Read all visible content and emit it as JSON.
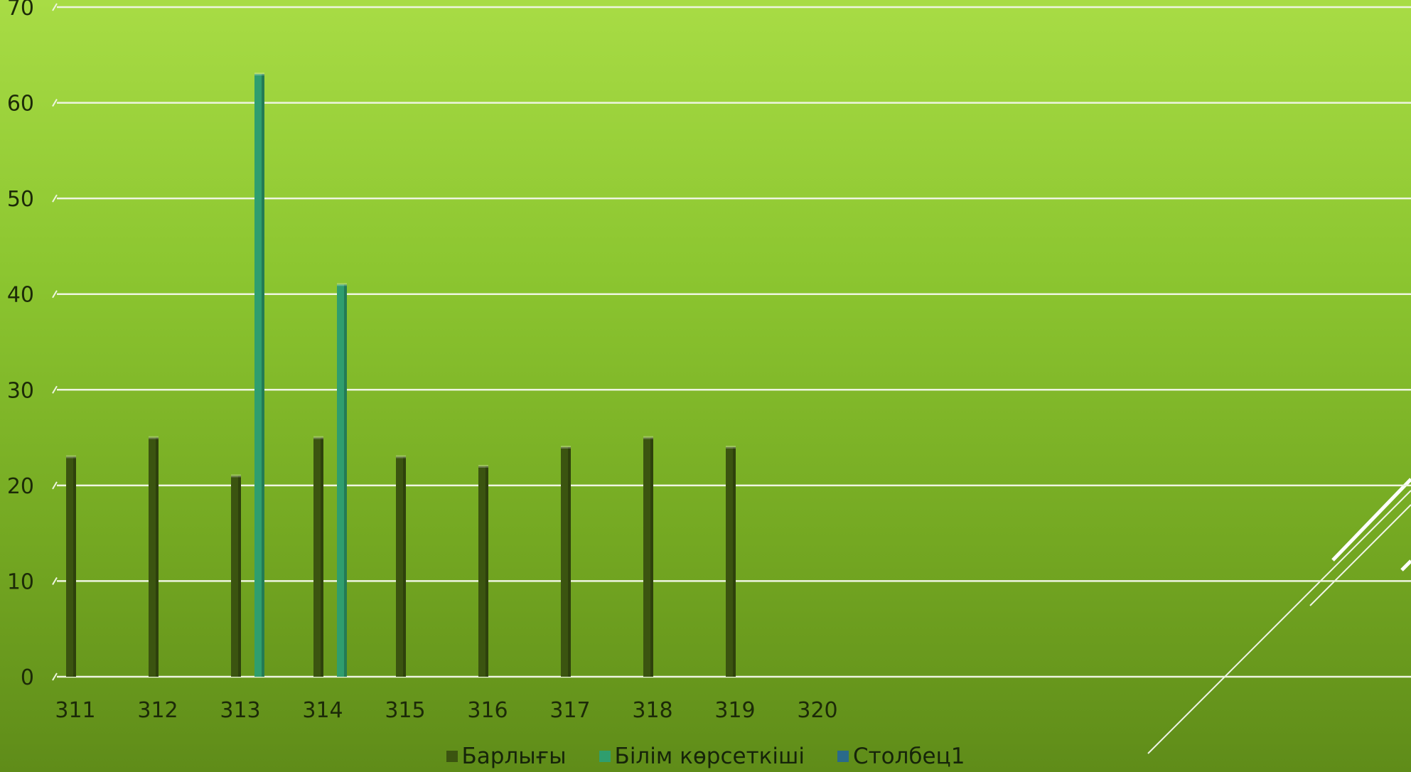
{
  "chart_data": {
    "type": "bar",
    "categories": [
      "311",
      "312",
      "313",
      "314",
      "315",
      "316",
      "317",
      "318",
      "319",
      "320"
    ],
    "series": [
      {
        "name": "Барлығы",
        "color": "#3b5410",
        "values": [
          23,
          25,
          21,
          25,
          23,
          22,
          24,
          25,
          24,
          null
        ]
      },
      {
        "name": "Білім көрсеткіші",
        "color": "#2f9e6e",
        "values": [
          null,
          null,
          63,
          41,
          null,
          null,
          null,
          null,
          null,
          null
        ]
      },
      {
        "name": "Столбец1",
        "color": "#2a6a8a",
        "values": [
          null,
          null,
          null,
          null,
          null,
          null,
          null,
          null,
          null,
          null
        ]
      }
    ],
    "yticks": [
      "0",
      "10",
      "20",
      "30",
      "40",
      "50",
      "60",
      "70"
    ],
    "ylim": [
      0,
      70
    ],
    "grid": true,
    "legend_position": "bottom",
    "title": "",
    "xlabel": "",
    "ylabel": ""
  }
}
